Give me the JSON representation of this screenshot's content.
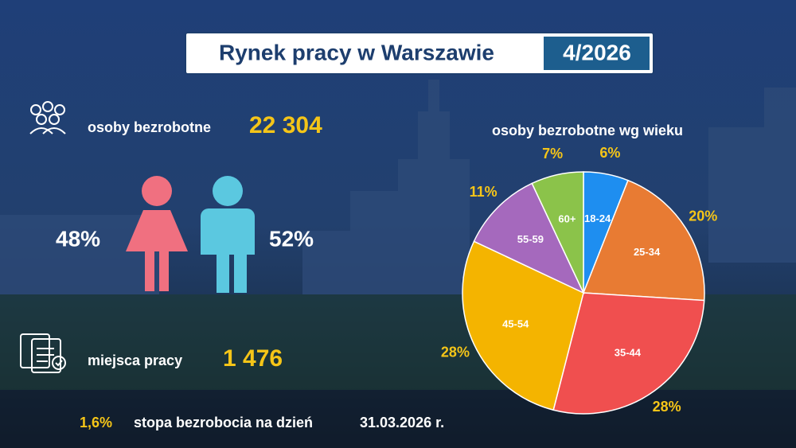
{
  "header": {
    "title": "Rynek pracy w Warszawie",
    "period": "4/2026"
  },
  "unemployed": {
    "label": "osoby bezrobotne",
    "value": "22 304"
  },
  "gender": {
    "female": "48%",
    "male": "52%"
  },
  "jobs": {
    "label": "miejsca pracy",
    "value": "1 476"
  },
  "rate": {
    "value": "1,6%",
    "label": "stopa bezrobocia na dzień",
    "date": "31.03.2026 r."
  },
  "chart_data": {
    "type": "pie",
    "title": "osoby bezrobotne wg wieku",
    "categories": [
      "18-24",
      "25-34",
      "35-44",
      "45-54",
      "55-59",
      "60+"
    ],
    "values": [
      6,
      20,
      28,
      28,
      11,
      7
    ],
    "value_labels": [
      "6%",
      "20%",
      "28%",
      "28%",
      "11%",
      "7%"
    ],
    "colors": [
      "#1e8ef0",
      "#e87b33",
      "#f04f4f",
      "#f4b400",
      "#a569bd",
      "#8bc34a"
    ]
  }
}
